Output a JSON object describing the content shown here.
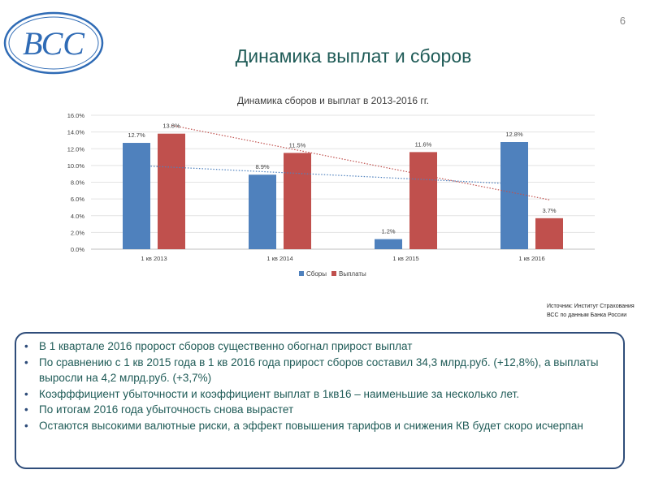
{
  "page_number": "6",
  "slide_title": "Динамика выплат и сборов",
  "logo_text": "ВСС",
  "source_line1": "Источник: Институт Страхования",
  "source_line2": "ВСС по данным Банка России",
  "bullets": [
    "В 1 квартале 2016 пророст сборов существенно обогнал прирост выплат",
    "По сравнению с 1 кв 2015 года в 1 кв 2016 года прирост сборов составил 34,3 млрд.руб. (+12,8%), а выплаты выросли на 4,2 млрд.руб. (+3,7%)",
    "Коэфффициент убыточности и коэффициент выплат в 1кв16 – наименьшие за несколько лет.",
    "По итогам 2016 года убыточность снова вырастет",
    "Остаются высокими валютные риски, а эффект повышения тарифов и снижения КВ будет скоро исчерпан"
  ],
  "colors": {
    "sbory": "#4f81bd",
    "vyplaty": "#c0504d",
    "title": "#1f5b57",
    "frame": "#2f4d7a"
  },
  "chart_data": {
    "type": "bar",
    "title": "Динамика сборов и выплат в 2013-2016 гг.",
    "categories": [
      "1 кв 2013",
      "1 кв 2014",
      "1 кв 2015",
      "1 кв 2016"
    ],
    "series": [
      {
        "name": "Сборы",
        "values": [
          12.7,
          8.9,
          1.2,
          12.8
        ],
        "labels": [
          "12.7%",
          "8.9%",
          "1.2%",
          "12.8%"
        ]
      },
      {
        "name": "Выплаты",
        "values": [
          13.8,
          11.5,
          11.6,
          3.7
        ],
        "labels": [
          "13.8%",
          "11.5%",
          "11.6%",
          "3.7%"
        ]
      }
    ],
    "trendlines": [
      {
        "series": "Сборы",
        "style": "dotted",
        "from": 10.0,
        "to": 7.8
      },
      {
        "series": "Выплаты",
        "style": "dotted",
        "from": 14.8,
        "to": 5.9
      }
    ],
    "ylim": [
      0,
      16
    ],
    "yticks": [
      "0.0%",
      "2.0%",
      "4.0%",
      "6.0%",
      "8.0%",
      "10.0%",
      "12.0%",
      "14.0%",
      "16.0%"
    ],
    "grid": true,
    "legend_position": "bottom",
    "xlabel": "",
    "ylabel": ""
  }
}
